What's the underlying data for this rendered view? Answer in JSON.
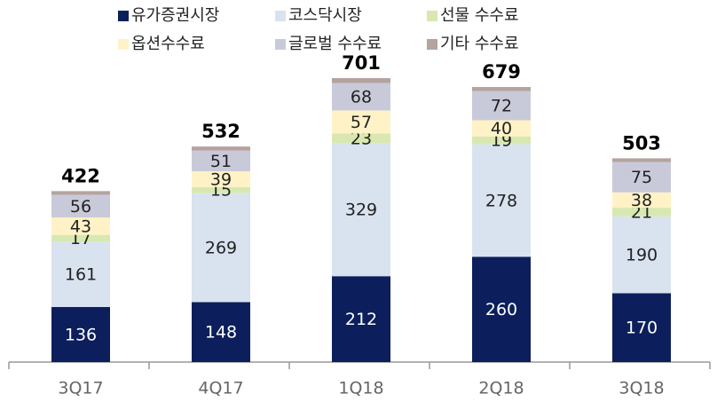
{
  "chart_data": {
    "type": "stacked_bar",
    "categories": [
      "3Q17",
      "4Q17",
      "1Q18",
      "2Q18",
      "3Q18"
    ],
    "series": [
      {
        "name": "유가증권시장",
        "color": "#0c1f5c",
        "values": [
          136,
          148,
          212,
          260,
          170
        ]
      },
      {
        "name": "코스닥시장",
        "color": "#d9e3ef",
        "values": [
          161,
          269,
          329,
          278,
          190
        ]
      },
      {
        "name": "선물 수수료",
        "color": "#d8e8b0",
        "values": [
          17,
          15,
          23,
          19,
          21
        ]
      },
      {
        "name": "옵션수수료",
        "color": "#fff2c6",
        "values": [
          43,
          39,
          57,
          40,
          38
        ]
      },
      {
        "name": "글로벌 수수료",
        "color": "#c9cad9",
        "values": [
          56,
          51,
          68,
          72,
          75
        ]
      },
      {
        "name": "기타 수수료",
        "color": "#b5a39f",
        "values": [
          9,
          10,
          12,
          10,
          9
        ]
      }
    ],
    "totals": [
      422,
      532,
      701,
      679,
      503
    ]
  }
}
